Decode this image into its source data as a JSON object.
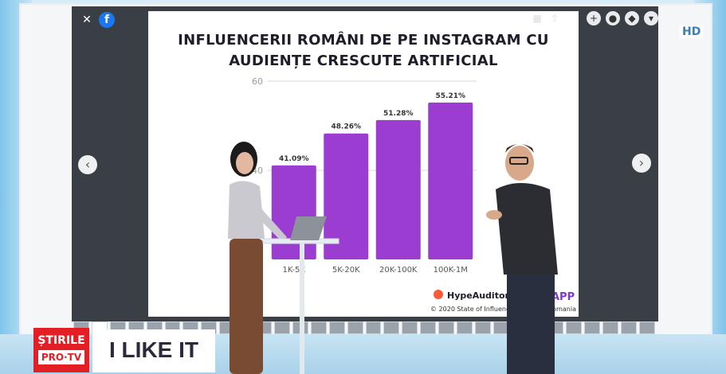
{
  "slide": {
    "title_line1": "INFLUENCERII ROMÂNI DE PE INSTAGRAM CU",
    "title_line2": "AUDIENȚE CRESCUTE ARTIFICIAL",
    "source_brand": "HypeAuditor",
    "source_note": "© 2020 State of Influencer",
    "source_note_right": "Romania",
    "partner_fragment": "APP"
  },
  "chart_data": {
    "type": "bar",
    "categories": [
      "1K-5K",
      "5K-20K",
      "20K-100K",
      "100K-1M"
    ],
    "values": [
      41.09,
      48.26,
      51.28,
      55.21
    ],
    "data_labels": [
      "41.09%",
      "48.26%",
      "51.28%",
      "55.21%"
    ],
    "y_ticks": [
      "40",
      "60"
    ],
    "ylim": [
      20,
      60
    ],
    "grid": true,
    "bar_color": "#9b3dd1"
  },
  "overlay": {
    "hd_badge": "HD",
    "logo_line1": "ȘTIRILE",
    "logo_line2": "PRO·TV",
    "show_name": "I LIKE IT"
  },
  "icons": [
    "mute-icon",
    "facebook-icon",
    "grid-icon",
    "share-icon",
    "plus-icon",
    "chat-icon",
    "settings-icon",
    "chevron-down-icon",
    "arrow-left-icon",
    "arrow-right-icon"
  ]
}
